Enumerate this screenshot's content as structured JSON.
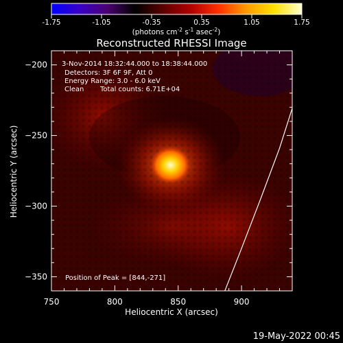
{
  "colorbar": {
    "ticks": [
      "-1.75",
      "-1.05",
      "-0.35",
      "0.35",
      "1.05",
      "1.75"
    ],
    "units_prefix": "(photons cm",
    "units_e1": "-2",
    "units_mid1": " s",
    "units_e2": "-1",
    "units_mid2": " asec",
    "units_e3": "-2",
    "units_suffix": ")",
    "colors": [
      "#0000ff",
      "#3a00c8",
      "#4a0070",
      "#000000",
      "#5a0000",
      "#b00000",
      "#ff3000",
      "#ff9a00",
      "#ffe000",
      "#ffffd0"
    ]
  },
  "image_text": {
    "date_line": "3-Nov-2014 18:32:44.000 to 18:38:44.000",
    "detectors_line": "Detectors: 3F 6F 9F, Att 0",
    "energy_line": "Energy Range: 3.0 - 6.0 keV",
    "clean_label": "Clean",
    "counts_line": "Total counts: 6.71E+04",
    "peak_line": "Position of Peak = [844,-271]"
  },
  "footer": {
    "timestamp": "19-May-2022 00:45"
  },
  "chart_data": {
    "type": "heatmap",
    "title": "Reconstructed RHESSI Image",
    "xlabel": "Heliocentric X (arcsec)",
    "ylabel": "Heliocentric Y (arcsec)",
    "xlim": [
      750,
      940
    ],
    "ylim": [
      -360,
      -190
    ],
    "xticks": [
      750,
      800,
      850,
      900
    ],
    "yticks": [
      -200,
      -250,
      -300,
      -350
    ],
    "value_range": [
      -1.75,
      1.75
    ],
    "peak": {
      "x": 844,
      "y": -271
    },
    "limb": [
      [
        941,
        -228
      ],
      [
        930,
        -259
      ],
      [
        915,
        -295
      ],
      [
        900,
        -330
      ],
      [
        889,
        -355
      ],
      [
        882,
        -371
      ]
    ]
  }
}
